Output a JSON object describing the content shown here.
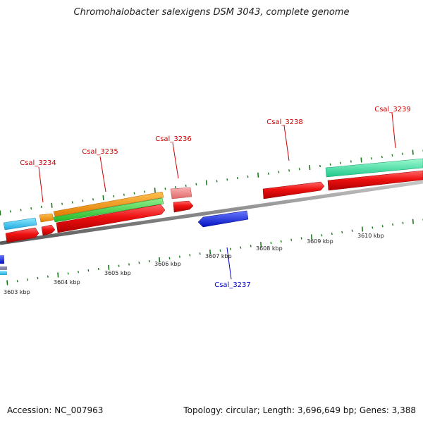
{
  "title": "Chromohalobacter salexigens DSM 3043, complete genome",
  "accession_text": "Accession: NC_007963",
  "summary_text": "Topology: circular; Length: 3,696,649 bp; Genes: 3,388",
  "colors": {
    "backbone": "#8a8a8a",
    "ticks": "#1a7a1a",
    "label_forward": "#cc0000",
    "label_reverse": "#0000cc"
  },
  "scale_labels": [
    "3603 kbp",
    "3604 kbp",
    "3605 kbp",
    "3606 kbp",
    "3607 kbp",
    "3608 kbp",
    "3609 kbp",
    "3610 kbp"
  ],
  "gene_labels": [
    {
      "text": "Csal_3234",
      "strand": "forward"
    },
    {
      "text": "Csal_3235",
      "strand": "forward"
    },
    {
      "text": "Csal_3236",
      "strand": "forward"
    },
    {
      "text": "Csal_3237",
      "strand": "reverse"
    },
    {
      "text": "Csal_3238",
      "strand": "forward"
    },
    {
      "text": "Csal_3239",
      "strand": "forward"
    }
  ]
}
